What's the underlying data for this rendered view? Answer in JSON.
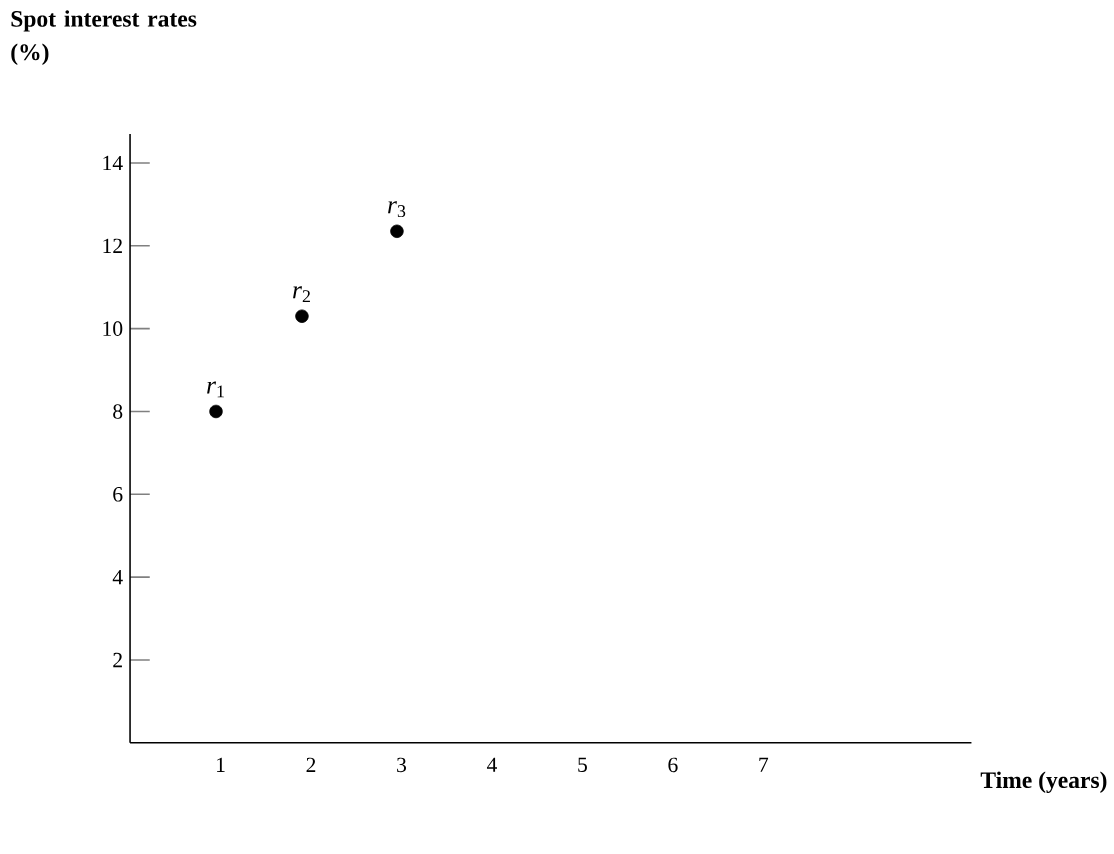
{
  "chart_data": {
    "type": "scatter",
    "xlabel": "Time (years)",
    "ylabel": "Spot interest rates (%)",
    "x": [
      0.95,
      1.9,
      2.95
    ],
    "values": [
      8,
      10.3,
      12.35
    ],
    "color": "#000000",
    "marker": "circle",
    "xlim": [
      0,
      9.3
    ],
    "ylim": [
      0,
      14.7
    ],
    "xticks": [
      1,
      2,
      3,
      4,
      5,
      6,
      7
    ],
    "yticks": [
      2,
      4,
      6,
      8,
      10,
      12,
      14
    ],
    "grid": false,
    "annotations": [
      {
        "text": "*r*$_{1}$",
        "x": 0.95,
        "y": 8
      },
      {
        "text": "*r*$_{2}$",
        "x": 1.9,
        "y": 10.3
      },
      {
        "text": "*r*$_{3}$",
        "x": 2.95,
        "y": 12.35
      }
    ]
  }
}
